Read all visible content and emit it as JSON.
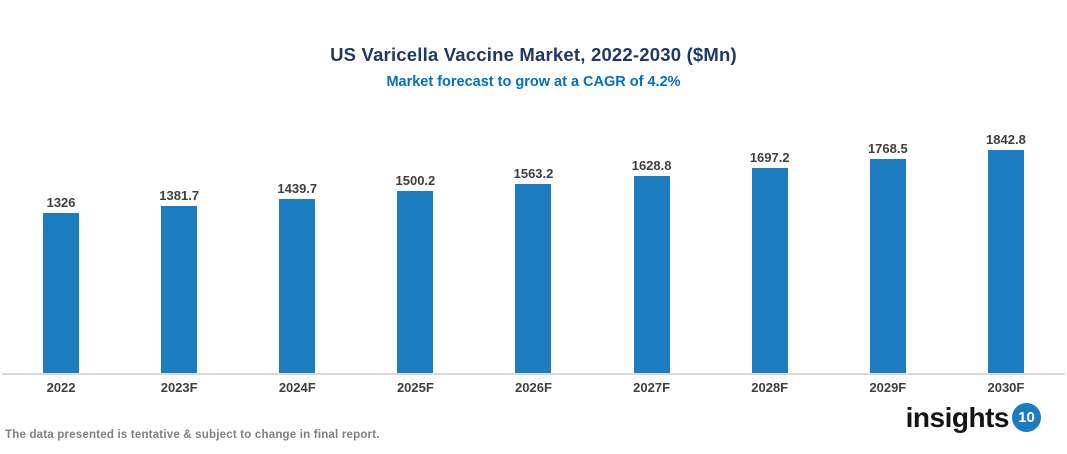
{
  "header": {
    "title": "US Varicella Vaccine Market, 2022-2030 ($Mn)",
    "subtitle": "Market forecast to grow at a CAGR of 4.2%"
  },
  "chart_data": {
    "type": "bar",
    "title": "US Varicella Vaccine Market, 2022-2030 ($Mn)",
    "subtitle": "Market forecast to grow at a CAGR of 4.2%",
    "categories": [
      "2022",
      "2023F",
      "2024F",
      "2025F",
      "2026F",
      "2027F",
      "2028F",
      "2029F",
      "2030F"
    ],
    "values": [
      1326,
      1381.7,
      1439.7,
      1500.2,
      1563.2,
      1628.8,
      1697.2,
      1768.5,
      1842.8
    ],
    "xlabel": "",
    "ylabel": "",
    "ylim": [
      0,
      1900
    ],
    "grid": false,
    "legend": false,
    "data_labels": true,
    "bar_color": "#1B7CC0",
    "value_label_color": "#3F3F3F",
    "axis_line_color": "#D9D9D9"
  },
  "footer": {
    "note": "The data presented is tentative & subject to change in final report."
  },
  "logo": {
    "text": "insights",
    "badge": "10",
    "badge_color": "#1B7CC0"
  },
  "colors": {
    "title": "#1F3864",
    "subtitle": "#0070C0",
    "footer_text": "#7F7F7F"
  }
}
